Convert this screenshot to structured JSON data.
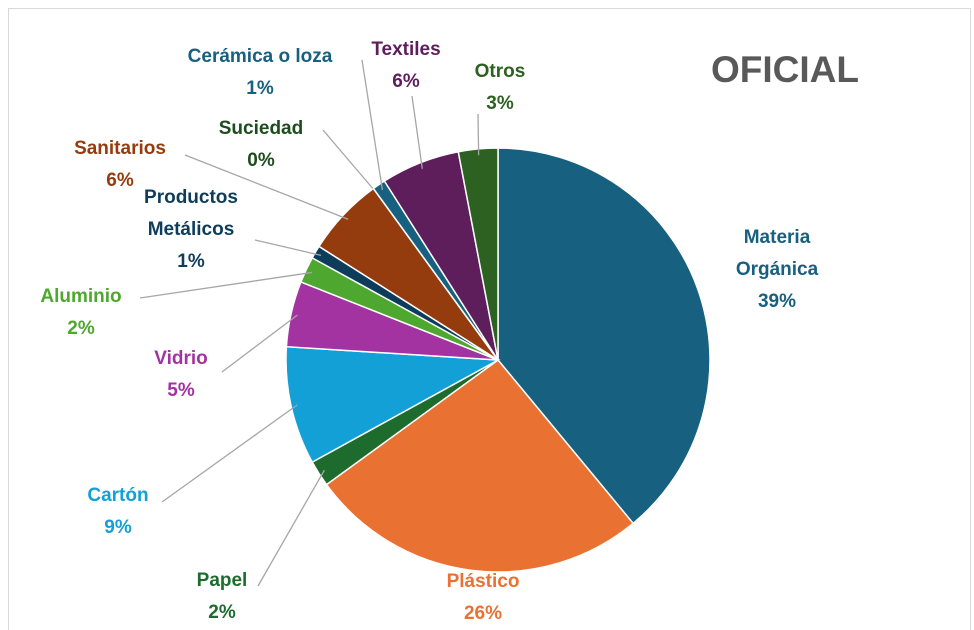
{
  "chart_data": {
    "type": "pie",
    "title": "OFICIAL",
    "categories": [
      "Materia Orgánica",
      "Plástico",
      "Papel",
      "Cartón",
      "Vidrio",
      "Aluminio",
      "Productos Metálicos",
      "Sanitarios",
      "Suciedad",
      "Cerámica o loza",
      "Textiles",
      "Otros"
    ],
    "values": [
      39,
      26,
      2,
      9,
      5,
      2,
      1,
      6,
      0,
      1,
      6,
      3
    ],
    "value_labels": [
      "39%",
      "26%",
      "2%",
      "9%",
      "5%",
      "2%",
      "1%",
      "6%",
      "0%",
      "1%",
      "6%",
      "3%"
    ],
    "colors": [
      "#17607f",
      "#e97132",
      "#1e6b2e",
      "#12a0d7",
      "#a233a0",
      "#4ea72e",
      "#0e3d5c",
      "#953c0f",
      "#1d4d1d",
      "#17607f",
      "#5e1d5b",
      "#2d6122"
    ]
  }
}
